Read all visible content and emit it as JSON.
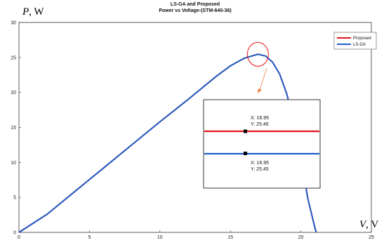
{
  "chart_data": {
    "type": "line",
    "title": "LS-GA and Proposed",
    "subtitle": "Power vs Voltage-(STM-640-36)",
    "ylabel_italic": "P",
    "ylabel_unit": ", W",
    "xlabel_italic": "V",
    "xlabel_unit": ", V",
    "xlim": [
      0,
      25
    ],
    "ylim": [
      0,
      30
    ],
    "xticks": [
      0,
      5,
      10,
      15,
      20,
      25
    ],
    "yticks": [
      0,
      5,
      10,
      15,
      20,
      25,
      30
    ],
    "grid": false,
    "legend_position": "top-right",
    "series": [
      {
        "name": "Proposed",
        "color": "#e8141c",
        "x": [
          0,
          2,
          4,
          6,
          8,
          10,
          12,
          14,
          15,
          16,
          16.95,
          17.5,
          18,
          18.5,
          19,
          19.5,
          20,
          20.5,
          21,
          21.1
        ],
        "y": [
          0,
          2.6,
          5.9,
          9.2,
          12.5,
          15.8,
          19.0,
          22.3,
          23.8,
          24.9,
          25.46,
          25.2,
          24.3,
          22.6,
          19.8,
          15.8,
          10.6,
          4.8,
          0.6,
          0
        ]
      },
      {
        "name": "LS-GA",
        "color": "#1f5fc8",
        "x": [
          0,
          2,
          4,
          6,
          8,
          10,
          12,
          14,
          15,
          16,
          16.95,
          17.5,
          18,
          18.5,
          19,
          19.5,
          20,
          20.5,
          21,
          21.1
        ],
        "y": [
          0,
          2.6,
          5.9,
          9.2,
          12.5,
          15.8,
          19.0,
          22.3,
          23.8,
          24.9,
          25.45,
          25.2,
          24.3,
          22.6,
          19.8,
          15.8,
          10.6,
          4.8,
          0.6,
          0
        ]
      }
    ],
    "datatips": [
      {
        "series": "Proposed",
        "x_text": "X: 16.95",
        "y_text": "Y: 25.46"
      },
      {
        "series": "LS-GA",
        "x_text": "X: 16.95",
        "y_text": "Y: 25.45"
      }
    ],
    "highlight_point": {
      "x": 16.95,
      "y": 25.45
    }
  }
}
